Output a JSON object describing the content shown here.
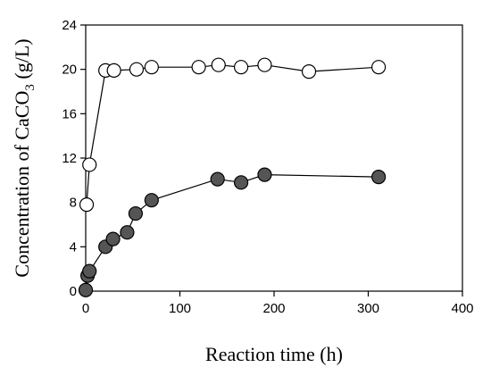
{
  "chart_data": {
    "type": "scatter",
    "title": "",
    "xlabel": "Reaction time (h)",
    "ylabel": "Concentration of CaCO",
    "ylabel_subscript": "3",
    "ylabel_unit": " (g/L)",
    "xlim": [
      0,
      400
    ],
    "ylim": [
      0,
      24
    ],
    "xticks": [
      0,
      100,
      200,
      300,
      400
    ],
    "yticks": [
      0,
      4,
      8,
      12,
      16,
      20,
      24
    ],
    "grid": false,
    "legend": "none",
    "series": [
      {
        "marker": "open-circle",
        "color": "#ffffff",
        "points": [
          [
            1,
            7.8
          ],
          [
            4,
            11.4
          ],
          [
            21,
            19.9
          ],
          [
            30,
            19.9
          ],
          [
            54,
            20.0
          ],
          [
            70,
            20.2
          ],
          [
            120,
            20.2
          ],
          [
            141,
            20.4
          ],
          [
            165,
            20.2
          ],
          [
            190,
            20.4
          ],
          [
            237,
            19.8
          ],
          [
            311,
            20.2
          ]
        ]
      },
      {
        "marker": "filled-circle",
        "color": "#555555",
        "points": [
          [
            0,
            0.1
          ],
          [
            2,
            1.4
          ],
          [
            4,
            1.8
          ],
          [
            21,
            4.0
          ],
          [
            29,
            4.7
          ],
          [
            44,
            5.3
          ],
          [
            53,
            7.0
          ],
          [
            70,
            8.2
          ],
          [
            140,
            10.1
          ],
          [
            165,
            9.8
          ],
          [
            190,
            10.5
          ],
          [
            311,
            10.3
          ]
        ]
      }
    ]
  }
}
